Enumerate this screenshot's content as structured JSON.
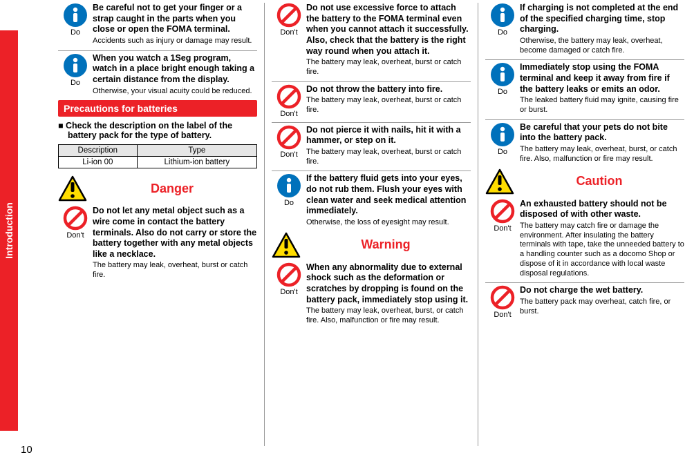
{
  "colors": {
    "accent": "#ec2127",
    "icon_blue": "#0071bb",
    "icon_yellow": "#ffdd00",
    "icon_black": "#000000",
    "icon_red": "#ec2127",
    "rule": "#999999"
  },
  "side_tab": "Introduction",
  "page_number": "10",
  "labels": {
    "do": "Do",
    "dont": "Don't",
    "danger": "Danger",
    "warning": "Warning",
    "caution": "Caution"
  },
  "col1": {
    "items_top": [
      {
        "icon": "do",
        "bold": "Be careful not to get your finger or a strap caught in the parts when you close or open the FOMA terminal.",
        "sub": "Accidents such as injury or damage may result."
      },
      {
        "icon": "do",
        "bold": "When you watch a 1Seg program, watch in a place bright enough taking a certain distance from the display.",
        "sub": "Otherwise, your visual acuity could be reduced."
      }
    ],
    "section_title": "Precautions for batteries",
    "blurb": "■ Check the description on the label of the battery pack for the type of battery.",
    "table": {
      "headers": [
        "Description",
        "Type"
      ],
      "row": [
        "Li-ion 00",
        "Lithium-ion battery"
      ]
    },
    "danger_items": [
      {
        "icon": "dont",
        "bold": "Do not let any metal object such as a wire come in contact the battery terminals. Also do not carry or store the battery together with any metal objects like a necklace.",
        "sub": "The battery may leak, overheat, burst or catch fire."
      }
    ]
  },
  "col2": {
    "items_top": [
      {
        "icon": "dont",
        "bold": "Do not use excessive force to attach the battery to the FOMA terminal even when you cannot attach it successfully. Also, check that the battery is the right way round when you attach it.",
        "sub": "The battery may leak, overheat, burst or catch fire."
      },
      {
        "icon": "dont",
        "bold": "Do not throw the battery into fire.",
        "sub": "The battery may leak, overheat, burst or catch fire."
      },
      {
        "icon": "dont",
        "bold": "Do not pierce it with nails, hit it with a hammer, or step on it.",
        "sub": "The battery may leak, overheat, burst or catch fire."
      },
      {
        "icon": "do",
        "bold": "If the battery fluid gets into your eyes, do not rub them. Flush your eyes with clean water and seek medical attention immediately.",
        "sub": "Otherwise, the loss of eyesight may result."
      }
    ],
    "warning_items": [
      {
        "icon": "dont",
        "bold": "When any abnormality due to external shock such as the deformation or scratches by dropping is found on the battery pack, immediately stop using it.",
        "sub": "The battery may leak, overheat, burst, or catch fire. Also, malfunction or fire may result."
      }
    ]
  },
  "col3": {
    "items_top": [
      {
        "icon": "do",
        "bold": "If charging is not completed at the end of the specified charging time, stop charging.",
        "sub": "Otherwise, the battery may leak, overheat, become damaged or catch fire."
      },
      {
        "icon": "do",
        "bold": "Immediately stop using the FOMA terminal and keep it away from fire if the battery leaks or emits an odor.",
        "sub": "The leaked battery fluid may ignite, causing fire or burst."
      },
      {
        "icon": "do",
        "bold": "Be careful that your pets do not bite into the battery pack.",
        "sub": "The battery may leak, overheat, burst, or catch fire. Also, malfunction or fire may result."
      }
    ],
    "caution_items": [
      {
        "icon": "dont",
        "bold": "An exhausted battery should not be disposed of with other waste.",
        "sub": "The battery may catch fire or damage the environment. After insulating the battery terminals with tape, take the unneeded battery to a handling counter such as a docomo Shop or dispose of it in accordance with local waste disposal regulations."
      },
      {
        "icon": "dont",
        "bold": "Do not charge the wet battery.",
        "sub": "The battery pack may overheat, catch fire, or burst."
      }
    ]
  }
}
